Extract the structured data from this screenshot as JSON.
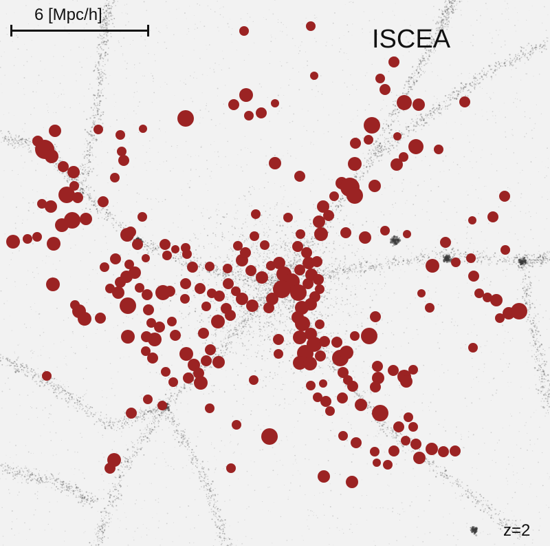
{
  "figure": {
    "scale_bar_label": "6 [Mpc/h]",
    "simulation_label": "ISCEA",
    "redshift_label": "z=2"
  },
  "colors": {
    "background": "#f2f2f2",
    "matter": "#3a3a3a",
    "galaxy_marker": "#9b2323"
  },
  "galaxies_note_count": 0
}
